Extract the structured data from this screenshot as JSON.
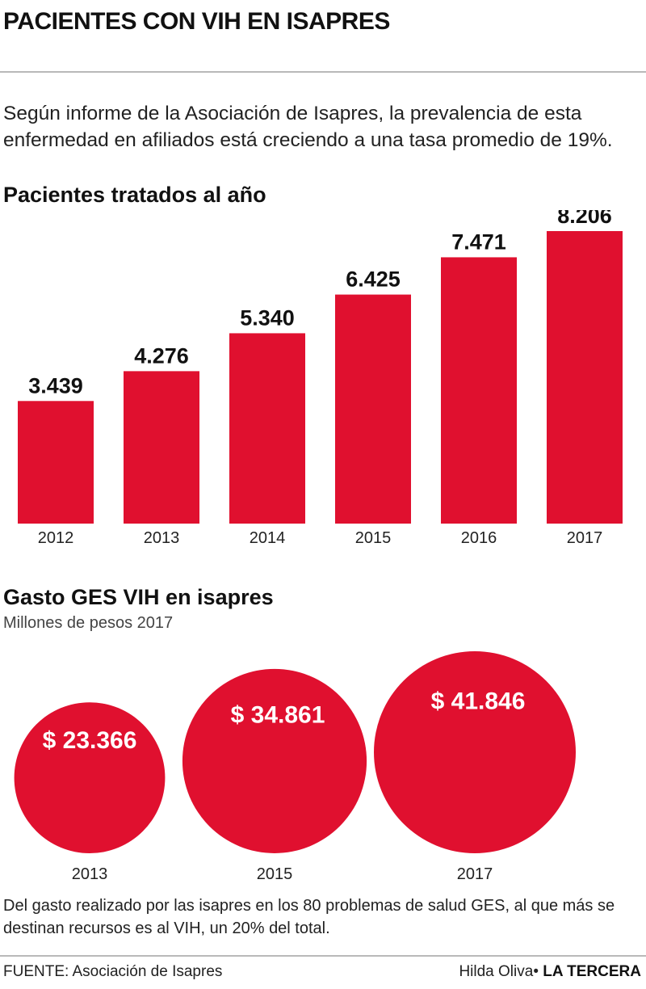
{
  "header": {
    "title": "PACIENTES CON VIH EN ISAPRES",
    "intro": "Según informe de la Asociación de Isapres, la prevalencia de esta enfermedad en afiliados está creciendo a una tasa promedio de 19%."
  },
  "colors": {
    "accent": "#e0102f",
    "rule": "#b9b9b9"
  },
  "chart_data": [
    {
      "type": "bar",
      "title": "Pacientes tratados al año",
      "categories": [
        "2012",
        "2013",
        "2014",
        "2015",
        "2016",
        "2017"
      ],
      "values": [
        3439,
        4276,
        5340,
        6425,
        7471,
        8206
      ],
      "labels": [
        "3.439",
        "4.276",
        "5.340",
        "6.425",
        "7.471",
        "8.206"
      ],
      "ylim": [
        0,
        8206
      ],
      "grid": false,
      "legend": "none"
    },
    {
      "type": "bubble",
      "title": "Gasto GES VIH en isapres",
      "subtitle": "Millones de pesos 2017",
      "categories": [
        "2013",
        "2015",
        "2017"
      ],
      "values": [
        23366,
        34861,
        41846
      ],
      "labels": [
        "$ 23.366",
        "$ 34.861",
        "$ 41.846"
      ]
    }
  ],
  "note": "Del gasto realizado por las isapres en los 80 problemas de salud GES, al que más se destinan recursos es al VIH, un 20% del total.",
  "footer": {
    "source": "FUENTE: Asociación de Isapres",
    "author": "Hilda Oliva",
    "separator": "•",
    "publication": "LA TERCERA"
  }
}
